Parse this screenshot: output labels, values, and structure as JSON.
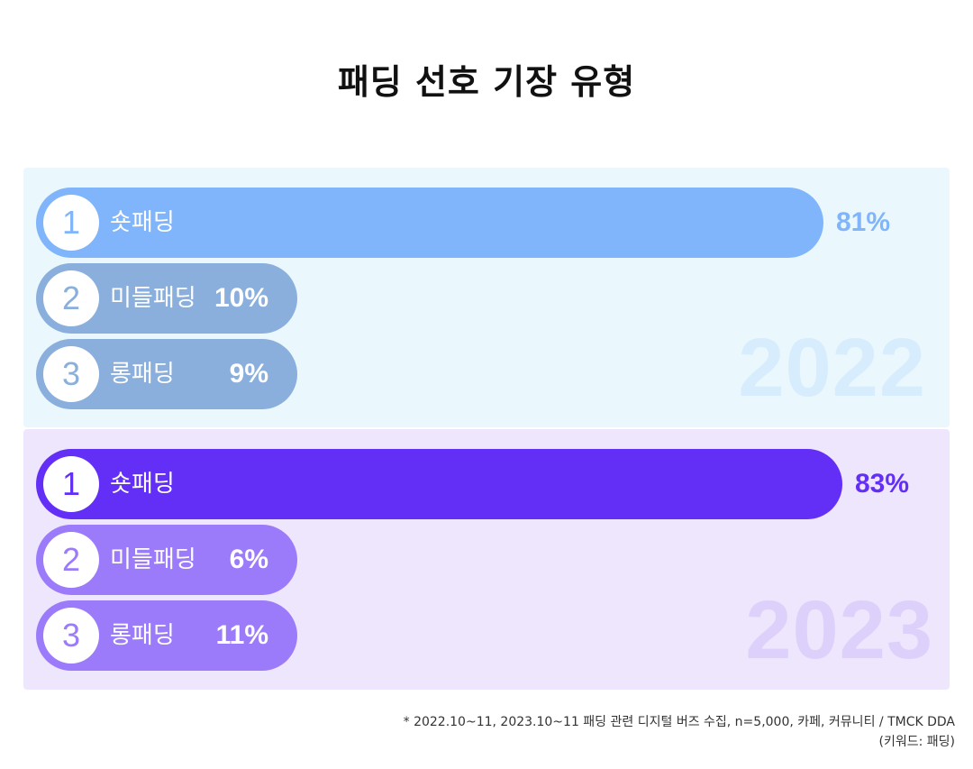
{
  "title": "패딩 선호 기장 유형",
  "colors": {
    "bar_2022_top": "#80b5fb",
    "bar_2022_other": "#8aafdc",
    "bar_2023_top": "#632ff6",
    "bar_2023_other": "#9b7bfa",
    "panel_2022": "#eaf8fd",
    "panel_2023": "#ede6fd"
  },
  "chart_data": [
    {
      "type": "bar",
      "orientation": "horizontal",
      "year_label": "2022",
      "categories": [
        "숏패딩",
        "미들패딩",
        "롱패딩"
      ],
      "ranks": [
        "1",
        "2",
        "3"
      ],
      "values": [
        81,
        10,
        9
      ],
      "value_labels": [
        "81%",
        "10%",
        "9%"
      ],
      "unit": "%"
    },
    {
      "type": "bar",
      "orientation": "horizontal",
      "year_label": "2023",
      "categories": [
        "숏패딩",
        "미들패딩",
        "롱패딩"
      ],
      "ranks": [
        "1",
        "2",
        "3"
      ],
      "values": [
        83,
        6,
        11
      ],
      "value_labels": [
        "83%",
        "6%",
        "11%"
      ],
      "unit": "%"
    }
  ],
  "footnote": {
    "line1": "* 2022.10~11, 2023.10~11 패딩 관련 디지털 버즈 수집, n=5,000, 카페, 커뮤니티 / TMCK DDA",
    "line2": "(키워드: 패딩)"
  }
}
